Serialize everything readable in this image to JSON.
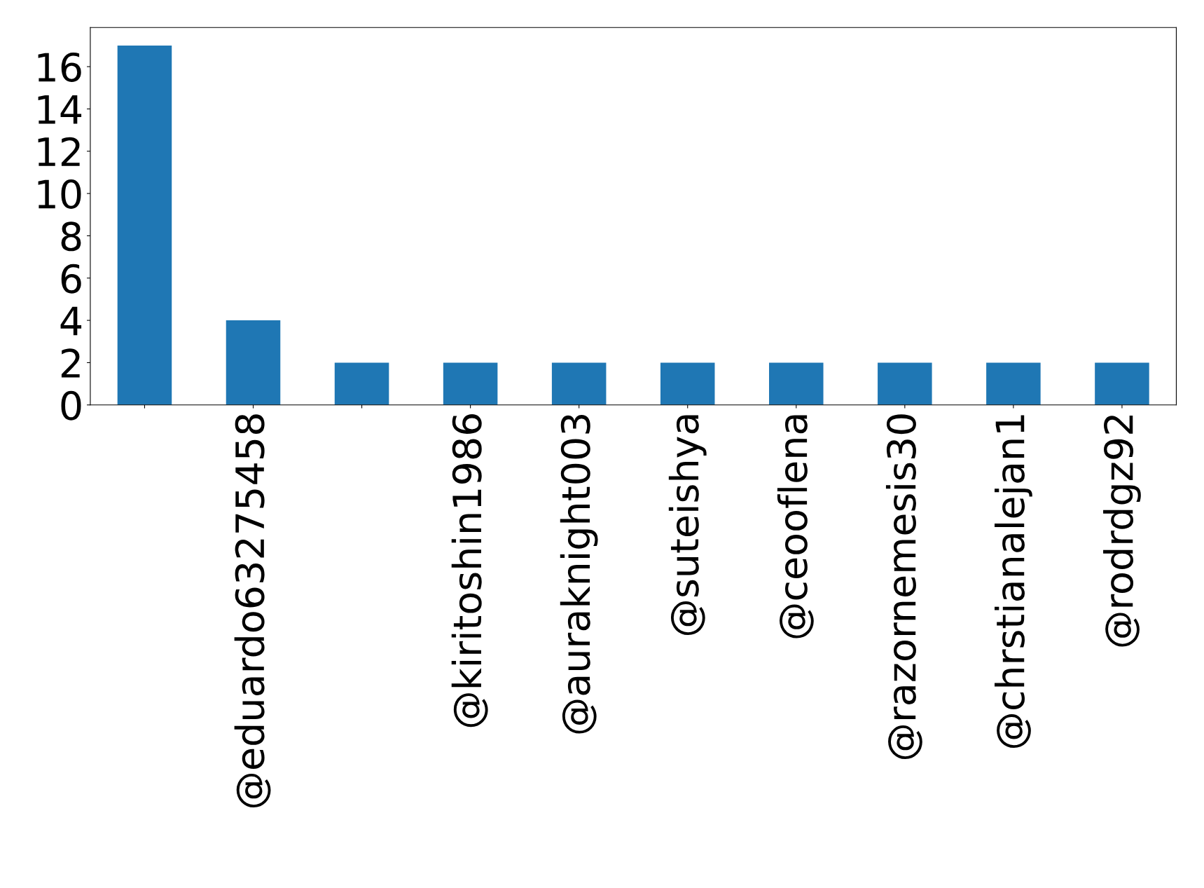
{
  "chart_data": {
    "type": "bar",
    "categories": [
      null,
      "@eduardo63275458",
      null,
      "@kiritoshin1986",
      "@auraknight003",
      "@suteishya",
      "@ceooflena",
      "@razornemesis30",
      "@chrstianalejan1",
      "@rodrdgz92"
    ],
    "values": [
      17,
      4,
      2,
      2,
      2,
      2,
      2,
      2,
      2,
      2
    ],
    "color": "#1f77b4",
    "ylim": [
      0,
      17.85
    ],
    "yticks": [
      0,
      2,
      4,
      6,
      8,
      10,
      12,
      14,
      16
    ],
    "grid": false,
    "legend": false
  }
}
